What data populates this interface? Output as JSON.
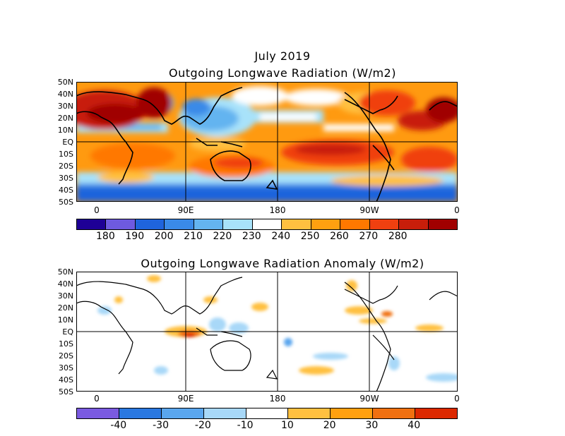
{
  "header": {
    "title": "July 2019"
  },
  "panel1": {
    "title": "Outgoing Longwave Radiation (W/m2)",
    "lat_labels": [
      "50N",
      "40N",
      "30N",
      "20N",
      "10N",
      "EQ",
      "10S",
      "20S",
      "30S",
      "40S",
      "50S"
    ],
    "lon_labels": [
      "0",
      "90E",
      "180",
      "90W",
      "0"
    ],
    "colorbar": {
      "colors": [
        "#1e0096",
        "#6e5ae0",
        "#1f64dc",
        "#3a8ae8",
        "#64b4f0",
        "#a8e2fa",
        "#ffffff",
        "#ffc040",
        "#ffa010",
        "#ff7800",
        "#f04010",
        "#c81e0a",
        "#a00000"
      ],
      "labels": [
        "180",
        "190",
        "200",
        "210",
        "220",
        "230",
        "240",
        "250",
        "260",
        "270",
        "280"
      ]
    }
  },
  "panel2": {
    "title": "Outgoing Longwave Radiation Anomaly (W/m2)",
    "lat_labels": [
      "50N",
      "40N",
      "30N",
      "20N",
      "10N",
      "EQ",
      "10S",
      "20S",
      "30S",
      "40S",
      "50S"
    ],
    "lon_labels": [
      "0",
      "90E",
      "180",
      "90W",
      "0"
    ],
    "colorbar": {
      "colors": [
        "#7a5ae0",
        "#2a78e0",
        "#5aa6ee",
        "#a8d8f8",
        "#ffffff",
        "#ffc040",
        "#ffa010",
        "#f07010",
        "#dc2800"
      ],
      "labels": [
        "-40",
        "-30",
        "-20",
        "-10",
        "10",
        "20",
        "30",
        "40"
      ]
    }
  }
}
